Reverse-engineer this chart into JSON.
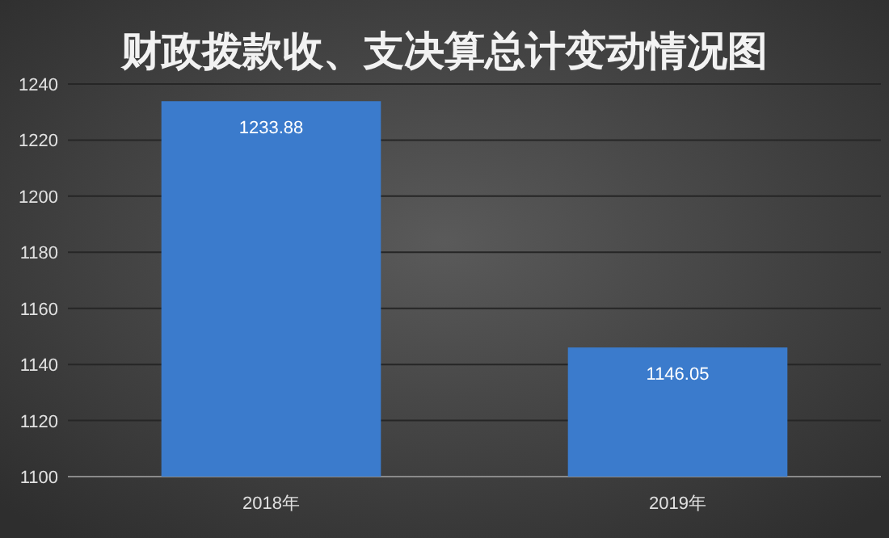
{
  "chart_data": {
    "type": "bar",
    "title": "财政拨款收、支决算总计变动情况图",
    "categories": [
      "2018年",
      "2019年"
    ],
    "values": [
      1233.88,
      1146.05
    ],
    "color": "#3b7bcc",
    "ylim": [
      1100,
      1240
    ],
    "yticks": [
      1100,
      1120,
      1140,
      1160,
      1180,
      1200,
      1220,
      1240
    ],
    "grid": "y",
    "data_labels": true
  }
}
